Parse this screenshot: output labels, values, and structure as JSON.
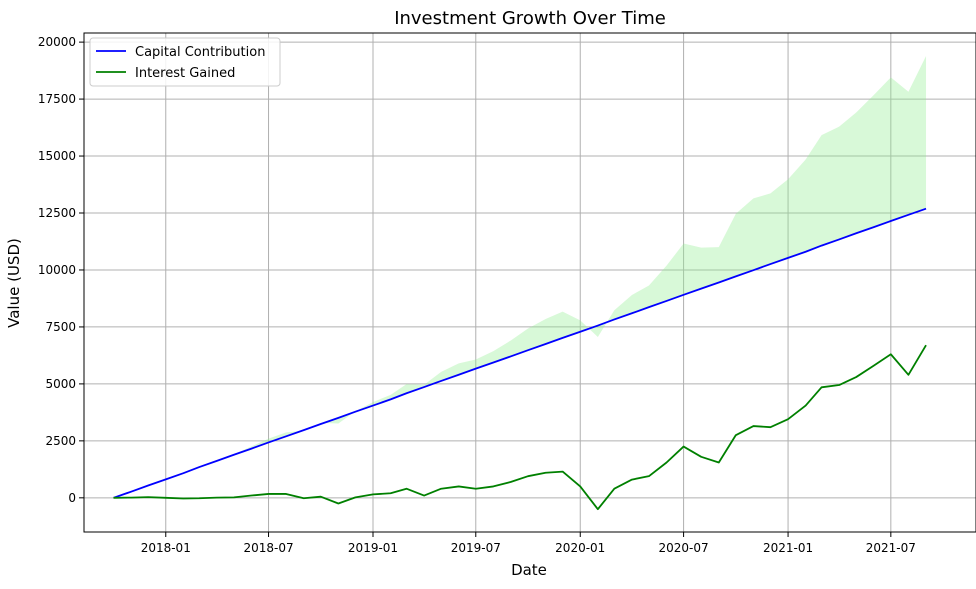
{
  "chart_data": {
    "type": "line",
    "title": "Investment Growth Over Time",
    "xlabel": "Date",
    "ylabel": "Value (USD)",
    "x": [
      "2017-10",
      "2017-11",
      "2017-12",
      "2018-01",
      "2018-02",
      "2018-03",
      "2018-04",
      "2018-05",
      "2018-06",
      "2018-07",
      "2018-08",
      "2018-09",
      "2018-10",
      "2018-11",
      "2018-12",
      "2019-01",
      "2019-02",
      "2019-03",
      "2019-04",
      "2019-05",
      "2019-06",
      "2019-07",
      "2019-08",
      "2019-09",
      "2019-10",
      "2019-11",
      "2019-12",
      "2020-01",
      "2020-02",
      "2020-03",
      "2020-04",
      "2020-05",
      "2020-06",
      "2020-07",
      "2020-08",
      "2020-09",
      "2020-10",
      "2020-11",
      "2020-12",
      "2021-01",
      "2021-02",
      "2021-03",
      "2021-04",
      "2021-05",
      "2021-06",
      "2021-07",
      "2021-08",
      "2021-09"
    ],
    "xlim": [
      "2017-08-10",
      "2021-11-28"
    ],
    "ylim": [
      -1500,
      20400
    ],
    "x_ticks": [
      "2018-01",
      "2018-07",
      "2019-01",
      "2019-07",
      "2020-01",
      "2020-07",
      "2021-01",
      "2021-07"
    ],
    "y_ticks": [
      0,
      2500,
      5000,
      7500,
      10000,
      12500,
      15000,
      17500,
      20000
    ],
    "grid": true,
    "legend_position": "upper-left",
    "series": [
      {
        "name": "Capital Contribution",
        "color": "#0000ff",
        "values": [
          0,
          270,
          540,
          810,
          1080,
          1350,
          1620,
          1890,
          2160,
          2430,
          2700,
          2970,
          3240,
          3510,
          3780,
          4050,
          4320,
          4590,
          4860,
          5130,
          5400,
          5670,
          5940,
          6210,
          6480,
          6750,
          7020,
          7290,
          7560,
          7830,
          8100,
          8370,
          8640,
          8910,
          9180,
          9450,
          9720,
          9990,
          10260,
          10530,
          10800,
          11070,
          11340,
          11610,
          11880,
          12150,
          12420,
          12690
        ]
      },
      {
        "name": "Interest Gained",
        "color": "#008000",
        "values": [
          0,
          10,
          30,
          0,
          -30,
          -20,
          10,
          20,
          100,
          170,
          170,
          -20,
          50,
          -250,
          20,
          150,
          200,
          400,
          100,
          400,
          500,
          400,
          500,
          700,
          950,
          1100,
          1150,
          500,
          -500,
          400,
          800,
          950,
          1550,
          2250,
          1800,
          1550,
          2750,
          3150,
          3100,
          3450,
          4050,
          4850,
          4950,
          5300,
          5800,
          6300,
          5400,
          6700
        ]
      }
    ],
    "fill": {
      "between": [
        "Capital Contribution",
        "Capital Contribution + Interest Gained"
      ],
      "color": "#90ee90",
      "opacity": 0.35
    }
  }
}
